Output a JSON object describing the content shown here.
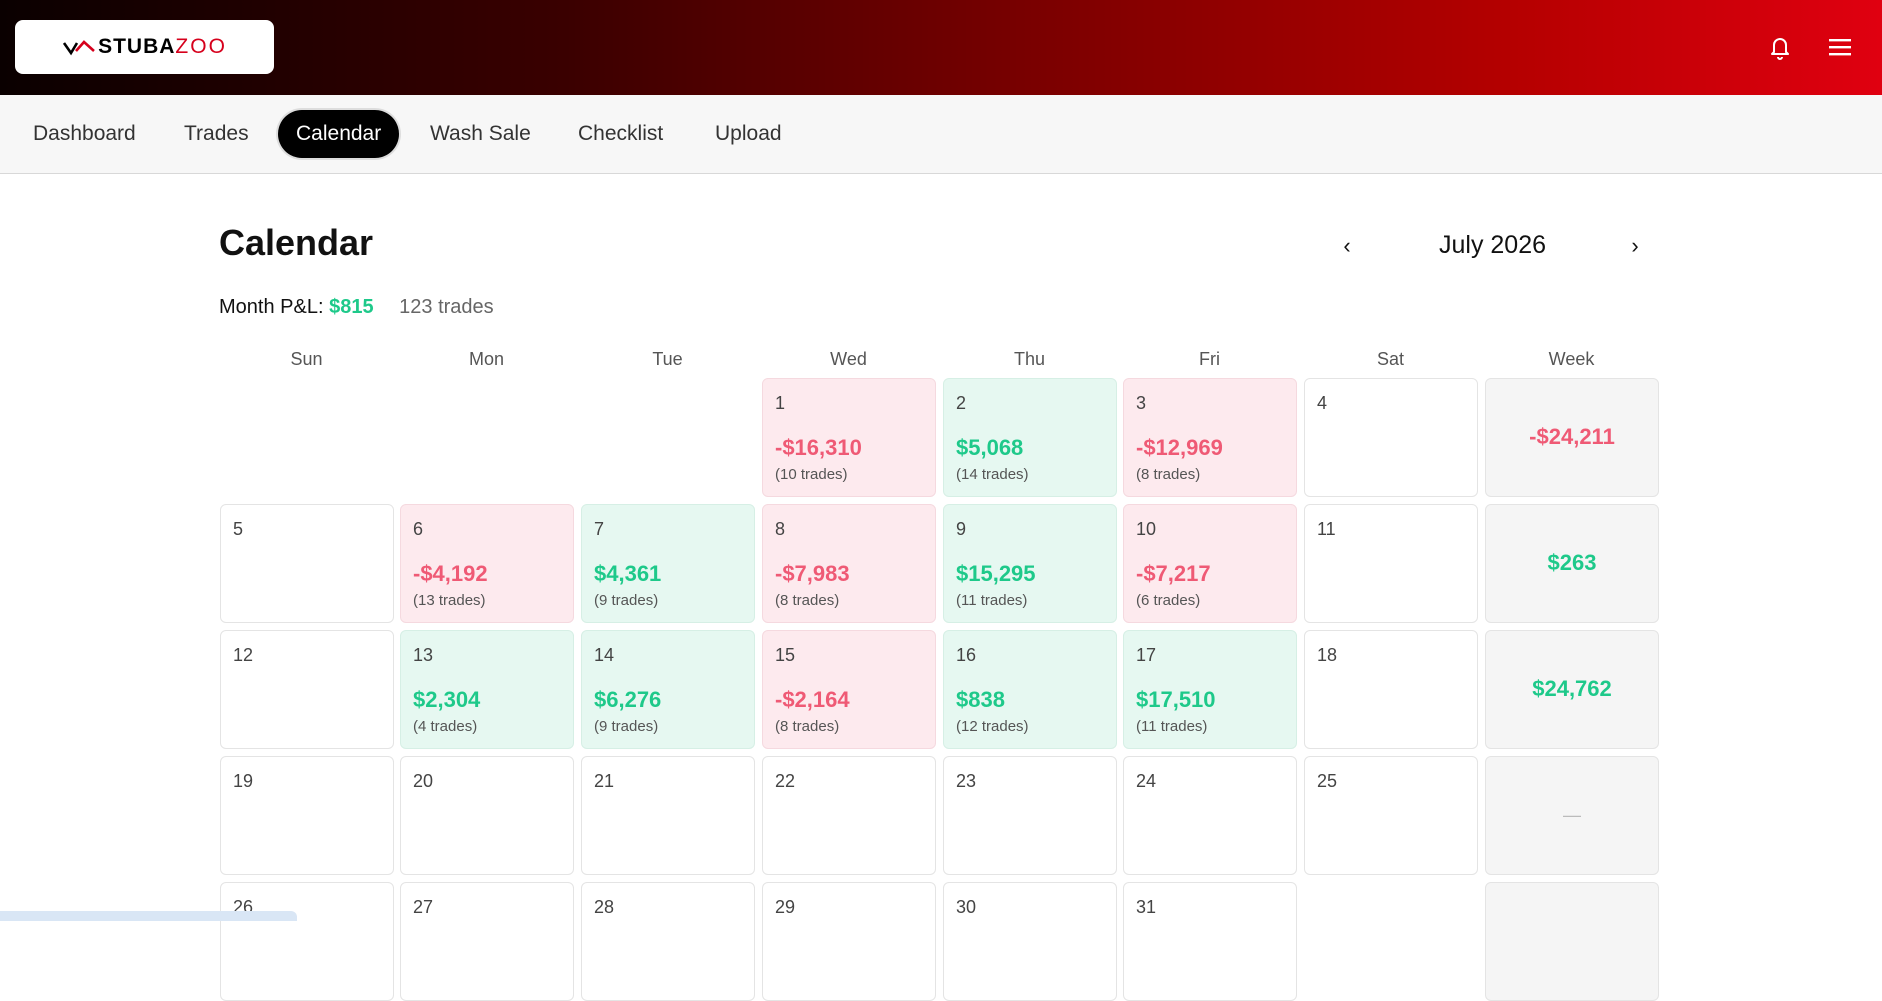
{
  "brand": {
    "part1": "STUBA",
    "part2": "ZOO"
  },
  "nav": {
    "tabs": [
      {
        "label": "Dashboard"
      },
      {
        "label": "Trades"
      },
      {
        "label": "Calendar",
        "active": true
      },
      {
        "label": "Wash Sale"
      },
      {
        "label": "Checklist"
      },
      {
        "label": "Upload"
      }
    ]
  },
  "page": {
    "title": "Calendar",
    "month": "July 2026",
    "prev": "‹",
    "next": "›",
    "summary_label": "Month P&L:",
    "summary_pnl": "$815",
    "summary_count": "123 trades"
  },
  "weekdays": [
    "Sun",
    "Mon",
    "Tue",
    "Wed",
    "Thu",
    "Fri",
    "Sat",
    "Week"
  ],
  "weeks": [
    {
      "days": [
        null,
        null,
        null,
        {
          "day": "1",
          "pl": "-$16,310",
          "trades": "(10 trades)",
          "status": "neg"
        },
        {
          "day": "2",
          "pl": "$5,068",
          "trades": "(14 trades)",
          "status": "pos"
        },
        {
          "day": "3",
          "pl": "-$12,969",
          "trades": "(8 trades)",
          "status": "neg"
        },
        {
          "day": "4"
        }
      ],
      "total": "-$24,211",
      "total_status": "neg"
    },
    {
      "days": [
        {
          "day": "5"
        },
        {
          "day": "6",
          "pl": "-$4,192",
          "trades": "(13 trades)",
          "status": "neg"
        },
        {
          "day": "7",
          "pl": "$4,361",
          "trades": "(9 trades)",
          "status": "pos"
        },
        {
          "day": "8",
          "pl": "-$7,983",
          "trades": "(8 trades)",
          "status": "neg"
        },
        {
          "day": "9",
          "pl": "$15,295",
          "trades": "(11 trades)",
          "status": "pos"
        },
        {
          "day": "10",
          "pl": "-$7,217",
          "trades": "(6 trades)",
          "status": "neg"
        },
        {
          "day": "11"
        }
      ],
      "total": "$263",
      "total_status": "pos"
    },
    {
      "days": [
        {
          "day": "12"
        },
        {
          "day": "13",
          "pl": "$2,304",
          "trades": "(4 trades)",
          "status": "pos"
        },
        {
          "day": "14",
          "pl": "$6,276",
          "trades": "(9 trades)",
          "status": "pos"
        },
        {
          "day": "15",
          "pl": "-$2,164",
          "trades": "(8 trades)",
          "status": "neg"
        },
        {
          "day": "16",
          "pl": "$838",
          "trades": "(12 trades)",
          "status": "pos"
        },
        {
          "day": "17",
          "pl": "$17,510",
          "trades": "(11 trades)",
          "status": "pos"
        },
        {
          "day": "18"
        }
      ],
      "total": "$24,762",
      "total_status": "pos"
    },
    {
      "days": [
        {
          "day": "19"
        },
        {
          "day": "20"
        },
        {
          "day": "21"
        },
        {
          "day": "22"
        },
        {
          "day": "23"
        },
        {
          "day": "24"
        },
        {
          "day": "25"
        }
      ],
      "total": "—",
      "total_status": "empty"
    },
    {
      "days": [
        {
          "day": "26"
        },
        {
          "day": "27"
        },
        {
          "day": "28"
        },
        {
          "day": "29"
        },
        {
          "day": "30"
        },
        {
          "day": "31"
        },
        null
      ],
      "total": "",
      "total_status": "empty"
    }
  ],
  "colors": {
    "positive": "#1ec98a",
    "negative": "#ef5a75",
    "brand_red": "#d6001c"
  },
  "icons": {
    "bell": "bell-icon",
    "menu": "hamburger-menu-icon"
  }
}
